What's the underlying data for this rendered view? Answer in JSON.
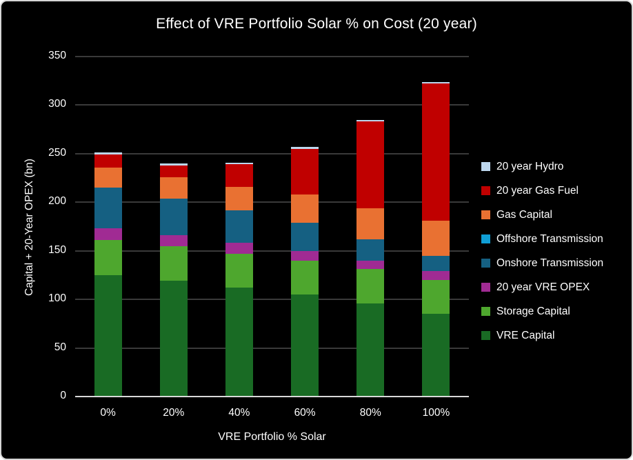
{
  "window": {
    "background": "#000000",
    "border_color": "#d6d6d6",
    "text_color": "#ffffff",
    "gridline_color": "#3a3a3a",
    "axis_line_color": "#d9d9d9"
  },
  "chart_data": {
    "type": "bar",
    "stacked": true,
    "title": "Effect of VRE Portfolio Solar % on Cost (20 year)",
    "xlabel": "VRE Portfolio % Solar",
    "ylabel": "Capital + 20-Year OPEX (bn)",
    "ylim": [
      0,
      350
    ],
    "yticks": [
      0,
      50,
      100,
      150,
      200,
      250,
      300,
      350
    ],
    "grid": true,
    "legend_position": "right",
    "categories": [
      "0%",
      "20%",
      "40%",
      "60%",
      "80%",
      "100%"
    ],
    "series": [
      {
        "name": "VRE Capital",
        "color": "#196B24",
        "values": [
          125,
          119,
          112,
          105,
          96,
          85
        ]
      },
      {
        "name": "Storage Capital",
        "color": "#4EA72E",
        "values": [
          36,
          36,
          35,
          35,
          35,
          35
        ]
      },
      {
        "name": "20 year VRE OPEX",
        "color": "#A02B93",
        "values": [
          12,
          11,
          11,
          10,
          9,
          9
        ]
      },
      {
        "name": "Onshore Transmission",
        "color": "#156082",
        "values": [
          42,
          38,
          34,
          29,
          22,
          16
        ]
      },
      {
        "name": "Offshore Transmission",
        "color": "#0F9ED5",
        "values": [
          0,
          0,
          0,
          0,
          0,
          0
        ]
      },
      {
        "name": "Gas Capital",
        "color": "#E97132",
        "values": [
          21,
          22,
          24,
          29,
          32,
          36
        ]
      },
      {
        "name": "20 year Gas Fuel",
        "color": "#C00000",
        "values": [
          13,
          12,
          23,
          47,
          89,
          141
        ]
      },
      {
        "name": "20 year Hydro",
        "color": "#BDD7EE",
        "values": [
          2,
          2,
          2,
          2,
          2,
          2
        ]
      }
    ],
    "totals": [
      251,
      240,
      241,
      257,
      285,
      324
    ]
  }
}
